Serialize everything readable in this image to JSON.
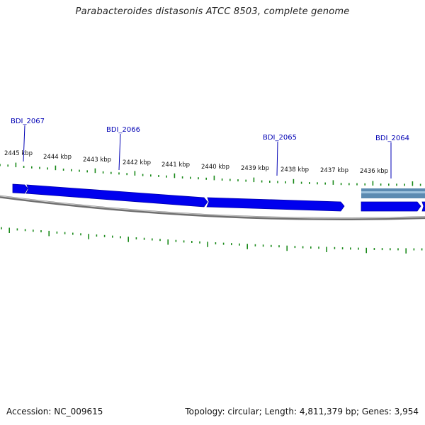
{
  "title": "Parabacteroides distasonis ATCC 8503, complete genome",
  "footer": {
    "accession": "Accession: NC_009615",
    "summary": "Topology: circular; Length: 4,811,379 bp; Genes: 3,954"
  },
  "genes": [
    {
      "label": "BDI_2067"
    },
    {
      "label": "BDI_2066"
    },
    {
      "label": "BDI_2065"
    },
    {
      "label": "BDI_2064"
    }
  ],
  "kbp_ticks": [
    "2445 kbp",
    "2444 kbp",
    "2443 kbp",
    "2442 kbp",
    "2441 kbp",
    "2440 kbp",
    "2439 kbp",
    "2438 kbp",
    "2437 kbp",
    "2436 kbp"
  ],
  "colors": {
    "gene_fill": "#0000ee",
    "gene_stroke": "#0000aa",
    "gene_label": "#0000b4",
    "tick": "#1a8a1a",
    "backbone": "#888888",
    "highlight": "#4a7ea8"
  }
}
